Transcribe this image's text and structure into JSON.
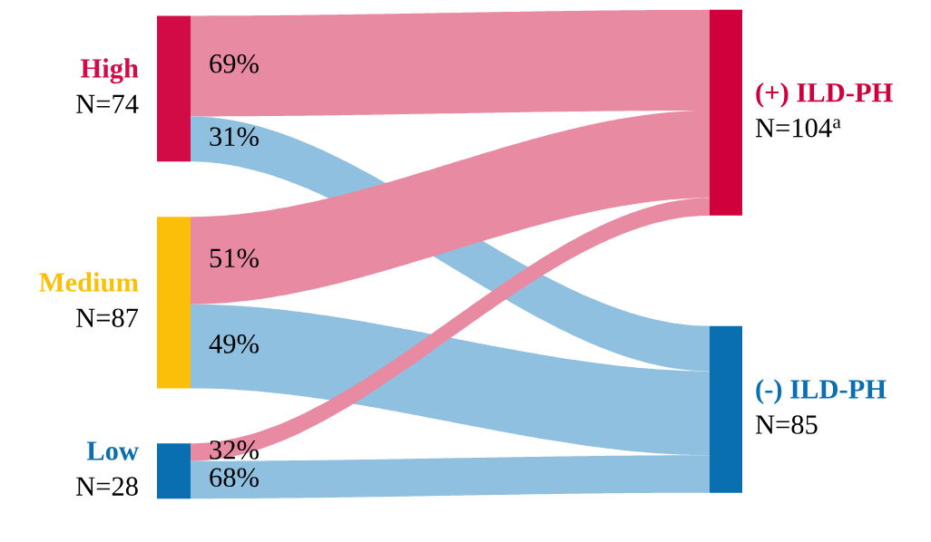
{
  "chart_data": {
    "type": "other",
    "categories": [
      "High",
      "Medium",
      "Low"
    ],
    "values": [
      74,
      87,
      28
    ],
    "value_labels": [
      "N=74",
      "N=87",
      "N=28"
    ],
    "colors": [
      "#d20a46",
      "#fbbf0a",
      "#0a6fb0"
    ],
    "series": [
      {
        "name": "(+) ILD-PH",
        "color": "#d0003c",
        "colors": [
          "#e98aa3",
          "#e98aa3",
          "#e98aa3"
        ],
        "values": [
          69,
          51,
          32
        ],
        "value_labels": [
          "69%",
          "51%",
          "32%"
        ]
      },
      {
        "name": "(-) ILD-PH",
        "color": "#0a6fb0",
        "colors": [
          "#8fc0e0",
          "#8fc0e0",
          "#8fc0e0"
        ],
        "values": [
          31,
          49,
          68
        ],
        "value_labels": [
          "31%",
          "49%",
          "68%"
        ]
      }
    ],
    "totals": [
      "N=104$^{a}$",
      "N=85"
    ]
  }
}
